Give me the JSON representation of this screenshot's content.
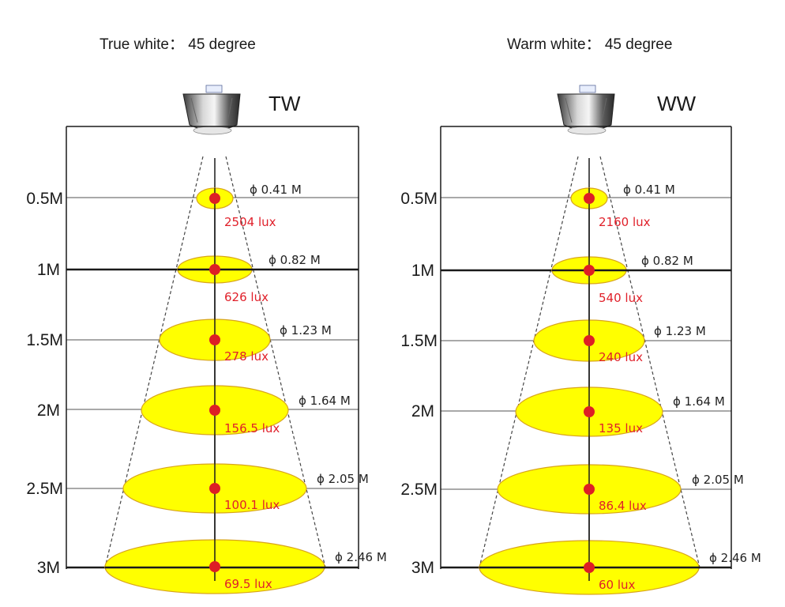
{
  "panels": [
    {
      "id": "tw",
      "title": "True white： 45 degree",
      "code": "TW",
      "levels": [
        {
          "distance": "0.5M",
          "diameter": "ϕ 0.41 M",
          "lux": "2504  lux"
        },
        {
          "distance": "1M",
          "diameter": "ϕ 0.82 M",
          "lux": "626 lux"
        },
        {
          "distance": "1.5M",
          "diameter": "ϕ 1.23 M",
          "lux": "278 lux"
        },
        {
          "distance": "2M",
          "diameter": "ϕ 1.64 M",
          "lux": "156.5 lux"
        },
        {
          "distance": "2.5M",
          "diameter": "ϕ 2.05 M",
          "lux": "100.1 lux"
        },
        {
          "distance": "3M",
          "diameter": "ϕ 2.46 M",
          "lux": "69.5 lux"
        }
      ]
    },
    {
      "id": "ww",
      "title": "Warm white： 45 degree",
      "code": "WW",
      "levels": [
        {
          "distance": "0.5M",
          "diameter": "ϕ 0.41 M",
          "lux": "2160  lux"
        },
        {
          "distance": "1M",
          "diameter": "ϕ 0.82 M",
          "lux": "540 lux"
        },
        {
          "distance": "1.5M",
          "diameter": "ϕ 1.23 M",
          "lux": "240 lux"
        },
        {
          "distance": "2M",
          "diameter": "ϕ 1.64 M",
          "lux": "135 lux"
        },
        {
          "distance": "2.5M",
          "diameter": "ϕ 2.05 M",
          "lux": "86.4 lux"
        },
        {
          "distance": "3M",
          "diameter": "ϕ 2.46 M",
          "lux": "60 lux"
        }
      ]
    }
  ],
  "colors": {
    "spot_fill": "#ffff00",
    "spot_stroke": "#d8a41c",
    "center_dot": "#dd1f25",
    "lux_text": "#e0202a",
    "line": "#1a1a1a"
  }
}
